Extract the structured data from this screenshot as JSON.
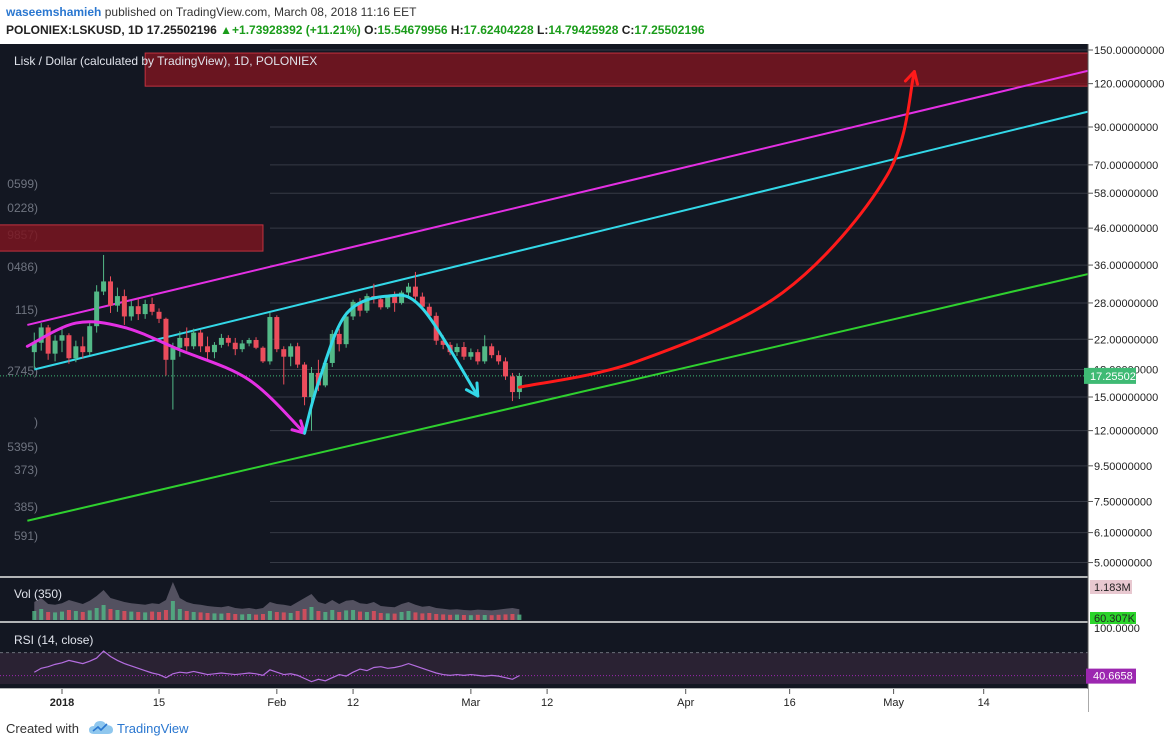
{
  "header": {
    "author": "waseemshamieh",
    "published_text": "published on TradingView.com, March 08, 2018 11:16 EET",
    "symbol": "POLONIEX:LSKUSD, 1D",
    "last": "17.25502196",
    "change_arrow": "▲",
    "change": "+1.73928392 (+11.21%)",
    "o_label": "O:",
    "o_value": "15.54679956",
    "h_label": "H:",
    "h_value": "17.62404228",
    "l_label": "L:",
    "l_value": "14.79425928",
    "c_label": "C:",
    "c_value": "17.25502196"
  },
  "footer": {
    "created_with": "Created with",
    "brand": "TradingView"
  },
  "colors": {
    "background": "#131722",
    "up": "#53b987",
    "down": "#eb4d5c",
    "zone": "#7a1520",
    "magenta": "#e430e4",
    "cyan": "#33d8e8",
    "green": "#2fd02f",
    "red": "#ff1a1a",
    "price_badge": "#3fba74",
    "rsi_badge": "#9c27b0"
  },
  "chart_data": [
    {
      "type": "candlestick",
      "title": "Lisk / Dollar (calculated by TradingView), 1D, POLONIEX",
      "y_scale": "log",
      "y_ticks": [
        "150.00000000",
        "120.00000000",
        "90.00000000",
        "70.00000000",
        "58.00000000",
        "46.00000000",
        "36.00000000",
        "28.00000000",
        "22.00000000",
        "18.00000000",
        "15.00000000",
        "12.00000000",
        "9.50000000",
        "7.50000000",
        "6.10000000",
        "5.00000000"
      ],
      "y_tick_values": [
        150,
        120,
        90,
        70,
        58,
        46,
        36,
        28,
        22,
        18,
        15,
        12,
        9.5,
        7.5,
        6.1,
        5
      ],
      "x_ticks": [
        "2018",
        "15",
        "Feb",
        "12",
        "Mar",
        "12",
        "Apr",
        "16",
        "May",
        "14"
      ],
      "x_tick_dates": [
        "2018-01-01",
        "2018-01-15",
        "2018-02-01",
        "2018-02-12",
        "2018-03-01",
        "2018-03-12",
        "2018-04-01",
        "2018-04-16",
        "2018-05-01",
        "2018-05-14"
      ],
      "last_price_label": "17.25502196",
      "last_price": 17.255,
      "left_cut_labels": [
        "0599)",
        "0228)",
        "9857)",
        "0486)",
        "115)",
        "2745)",
        ")",
        "5395)",
        "373)",
        "385)",
        "591)"
      ],
      "ohlc": [
        [
          "2017-12-28",
          20.2,
          23.0,
          18.1,
          21.5
        ],
        [
          "2017-12-29",
          21.5,
          24.5,
          20.4,
          23.8
        ],
        [
          "2017-12-30",
          23.8,
          24.2,
          19.2,
          20.0
        ],
        [
          "2017-12-31",
          20.0,
          22.6,
          19.0,
          21.8
        ],
        [
          "2018-01-01",
          21.8,
          23.6,
          20.2,
          22.6
        ],
        [
          "2018-01-02",
          22.6,
          22.9,
          18.7,
          19.4
        ],
        [
          "2018-01-03",
          19.4,
          21.8,
          18.9,
          21.0
        ],
        [
          "2018-01-04",
          21.0,
          22.4,
          19.4,
          20.2
        ],
        [
          "2018-01-05",
          20.2,
          24.6,
          19.8,
          24.0
        ],
        [
          "2018-01-06",
          24.0,
          31.5,
          23.0,
          30.2
        ],
        [
          "2018-01-07",
          30.2,
          38.5,
          29.5,
          32.3
        ],
        [
          "2018-01-08",
          32.3,
          33.4,
          26.2,
          27.5
        ],
        [
          "2018-01-09",
          27.5,
          31.0,
          26.4,
          29.3
        ],
        [
          "2018-01-10",
          29.3,
          30.6,
          24.2,
          25.6
        ],
        [
          "2018-01-11",
          25.6,
          28.4,
          24.9,
          27.4
        ],
        [
          "2018-01-12",
          27.4,
          28.8,
          25.0,
          26.0
        ],
        [
          "2018-01-13",
          26.0,
          28.6,
          25.2,
          27.8
        ],
        [
          "2018-01-14",
          27.8,
          29.0,
          25.8,
          26.4
        ],
        [
          "2018-01-15",
          26.4,
          27.0,
          24.5,
          25.2
        ],
        [
          "2018-01-16",
          25.2,
          25.4,
          17.3,
          19.2
        ],
        [
          "2018-01-17",
          19.2,
          21.5,
          13.8,
          20.8
        ],
        [
          "2018-01-18",
          20.8,
          23.2,
          19.6,
          22.2
        ],
        [
          "2018-01-19",
          22.2,
          23.8,
          20.4,
          21.0
        ],
        [
          "2018-01-20",
          21.0,
          23.6,
          20.6,
          23.0
        ],
        [
          "2018-01-21",
          23.0,
          23.4,
          20.2,
          21.0
        ],
        [
          "2018-01-22",
          21.0,
          22.4,
          19.2,
          20.2
        ],
        [
          "2018-01-23",
          20.2,
          21.6,
          19.4,
          21.2
        ],
        [
          "2018-01-24",
          21.2,
          22.8,
          20.8,
          22.2
        ],
        [
          "2018-01-25",
          22.2,
          22.6,
          21.0,
          21.5
        ],
        [
          "2018-01-26",
          21.5,
          22.2,
          19.8,
          20.6
        ],
        [
          "2018-01-27",
          20.6,
          21.9,
          20.2,
          21.4
        ],
        [
          "2018-01-28",
          21.4,
          22.2,
          21.0,
          21.9
        ],
        [
          "2018-01-29",
          21.9,
          22.3,
          20.6,
          20.8
        ],
        [
          "2018-01-30",
          20.8,
          21.0,
          18.8,
          19.0
        ],
        [
          "2018-01-31",
          19.0,
          26.3,
          18.6,
          25.5
        ],
        [
          "2018-02-01",
          25.5,
          25.8,
          20.2,
          20.6
        ],
        [
          "2018-02-02",
          20.6,
          21.0,
          16.3,
          19.6
        ],
        [
          "2018-02-03",
          19.6,
          21.4,
          18.4,
          21.0
        ],
        [
          "2018-02-04",
          21.0,
          21.5,
          18.2,
          18.6
        ],
        [
          "2018-02-05",
          18.6,
          18.9,
          14.2,
          15.0
        ],
        [
          "2018-02-06",
          15.0,
          18.3,
          12.0,
          17.6
        ],
        [
          "2018-02-07",
          17.6,
          19.2,
          15.6,
          16.2
        ],
        [
          "2018-02-08",
          16.2,
          19.4,
          16.0,
          18.8
        ],
        [
          "2018-02-09",
          18.8,
          23.4,
          18.3,
          22.8
        ],
        [
          "2018-02-10",
          22.8,
          23.6,
          20.3,
          21.3
        ],
        [
          "2018-02-11",
          21.3,
          26.4,
          20.8,
          25.6
        ],
        [
          "2018-02-12",
          25.6,
          28.6,
          25.0,
          28.2
        ],
        [
          "2018-02-13",
          28.2,
          28.9,
          25.6,
          26.6
        ],
        [
          "2018-02-14",
          26.6,
          29.8,
          26.2,
          29.3
        ],
        [
          "2018-02-15",
          29.3,
          31.8,
          27.9,
          28.7
        ],
        [
          "2018-02-16",
          28.7,
          29.4,
          26.8,
          27.2
        ],
        [
          "2018-02-17",
          27.2,
          29.5,
          26.9,
          29.2
        ],
        [
          "2018-02-18",
          29.2,
          30.2,
          26.4,
          28.0
        ],
        [
          "2018-02-19",
          28.0,
          30.4,
          27.7,
          30.0
        ],
        [
          "2018-02-20",
          30.0,
          32.0,
          28.8,
          31.2
        ],
        [
          "2018-02-21",
          31.2,
          34.4,
          28.2,
          29.2
        ],
        [
          "2018-02-22",
          29.2,
          30.0,
          26.8,
          27.3
        ],
        [
          "2018-02-23",
          27.3,
          27.9,
          25.3,
          25.7
        ],
        [
          "2018-02-24",
          25.7,
          26.3,
          21.2,
          21.8
        ],
        [
          "2018-02-25",
          21.8,
          22.6,
          20.6,
          21.2
        ],
        [
          "2018-02-26",
          21.2,
          21.6,
          19.8,
          20.2
        ],
        [
          "2018-02-27",
          20.2,
          21.4,
          19.7,
          20.9
        ],
        [
          "2018-02-28",
          20.9,
          21.6,
          19.2,
          19.6
        ],
        [
          "2018-03-01",
          19.6,
          20.7,
          19.2,
          20.2
        ],
        [
          "2018-03-02",
          20.2,
          20.6,
          18.6,
          19.0
        ],
        [
          "2018-03-03",
          19.0,
          22.6,
          18.7,
          21.0
        ],
        [
          "2018-03-04",
          21.0,
          21.4,
          19.4,
          19.8
        ],
        [
          "2018-03-05",
          19.8,
          20.4,
          18.6,
          19.0
        ],
        [
          "2018-03-06",
          19.0,
          19.5,
          16.8,
          17.2
        ],
        [
          "2018-03-07",
          17.2,
          17.6,
          14.6,
          15.5
        ],
        [
          "2018-03-08",
          15.5,
          17.6,
          14.8,
          17.25
        ]
      ],
      "annotations": {
        "zones": [
          {
            "label": "upper resistance zone",
            "x0": "2018-01-13",
            "x1": "2018-06-01",
            "y0": 118,
            "y1": 147
          },
          {
            "label": "left resistance zone",
            "x0": "2017-12-20",
            "x1": "2018-01-30",
            "y0": 39.5,
            "y1": 47
          }
        ],
        "trend_lines": [
          {
            "color": "magenta",
            "from": [
              "2017-12-27",
              24.2
            ],
            "to": [
              "2018-06-01",
              135
            ]
          },
          {
            "color": "cyan",
            "from": [
              "2017-12-28",
              18.0
            ],
            "to": [
              "2018-06-01",
              103
            ]
          },
          {
            "color": "green",
            "from": [
              "2017-12-27",
              6.6
            ],
            "to": [
              "2018-06-01",
              35
            ]
          }
        ],
        "arcs": [
          {
            "color": "magenta",
            "path": [
              [
                "2017-12-27",
                21
              ],
              [
                "2018-01-03",
                24.5
              ],
              [
                "2018-01-10",
                23.8
              ],
              [
                "2018-01-18",
                20.5
              ],
              [
                "2018-01-28",
                16.8
              ],
              [
                "2018-02-05",
                11.8
              ]
            ]
          },
          {
            "color": "cyan",
            "path": [
              [
                "2018-02-05",
                11.8
              ],
              [
                "2018-02-07",
                16.5
              ],
              [
                "2018-02-11",
                26
              ],
              [
                "2018-02-17",
                29.3
              ],
              [
                "2018-02-22",
                27
              ],
              [
                "2018-03-02",
                15.1
              ]
            ]
          },
          {
            "color": "red",
            "path": [
              [
                "2018-03-08",
                16.0
              ],
              [
                "2018-03-25",
                19.0
              ],
              [
                "2018-04-15",
                30
              ],
              [
                "2018-04-30",
                65
              ],
              [
                "2018-05-04",
                130
              ]
            ]
          }
        ]
      },
      "grid": true
    },
    {
      "type": "bar",
      "title": "Vol (350)",
      "last_label": "1.183M",
      "ma_label": "60.307K",
      "values": [
        0.45,
        0.55,
        0.4,
        0.38,
        0.42,
        0.5,
        0.45,
        0.4,
        0.48,
        0.6,
        0.75,
        0.55,
        0.5,
        0.45,
        0.42,
        0.4,
        0.38,
        0.42,
        0.4,
        0.5,
        0.95,
        0.55,
        0.45,
        0.4,
        0.38,
        0.35,
        0.33,
        0.32,
        0.35,
        0.3,
        0.28,
        0.3,
        0.27,
        0.3,
        0.45,
        0.4,
        0.38,
        0.35,
        0.45,
        0.55,
        0.65,
        0.45,
        0.4,
        0.5,
        0.4,
        0.48,
        0.5,
        0.42,
        0.4,
        0.45,
        0.35,
        0.33,
        0.32,
        0.4,
        0.45,
        0.38,
        0.33,
        0.35,
        0.3,
        0.28,
        0.26,
        0.27,
        0.25,
        0.24,
        0.26,
        0.25,
        0.24,
        0.26,
        0.28,
        0.3,
        0.27
      ]
    },
    {
      "type": "line",
      "title": "RSI (14, close)",
      "y_ticks": [
        "100.0000"
      ],
      "last_label": "40.6658",
      "values": [
        45,
        50,
        52,
        55,
        57,
        60,
        58,
        56,
        59,
        63,
        72,
        65,
        60,
        56,
        53,
        50,
        47,
        44,
        42,
        38,
        43,
        45,
        44,
        46,
        44,
        42,
        43,
        44,
        43,
        42,
        43,
        44,
        43,
        41,
        48,
        45,
        42,
        43,
        41,
        37,
        33,
        36,
        34,
        38,
        42,
        40,
        45,
        49,
        47,
        51,
        52,
        50,
        51,
        53,
        56,
        53,
        50,
        47,
        44,
        42,
        41,
        42,
        41,
        42,
        41,
        40,
        41,
        40,
        38,
        36,
        40.67
      ]
    }
  ]
}
